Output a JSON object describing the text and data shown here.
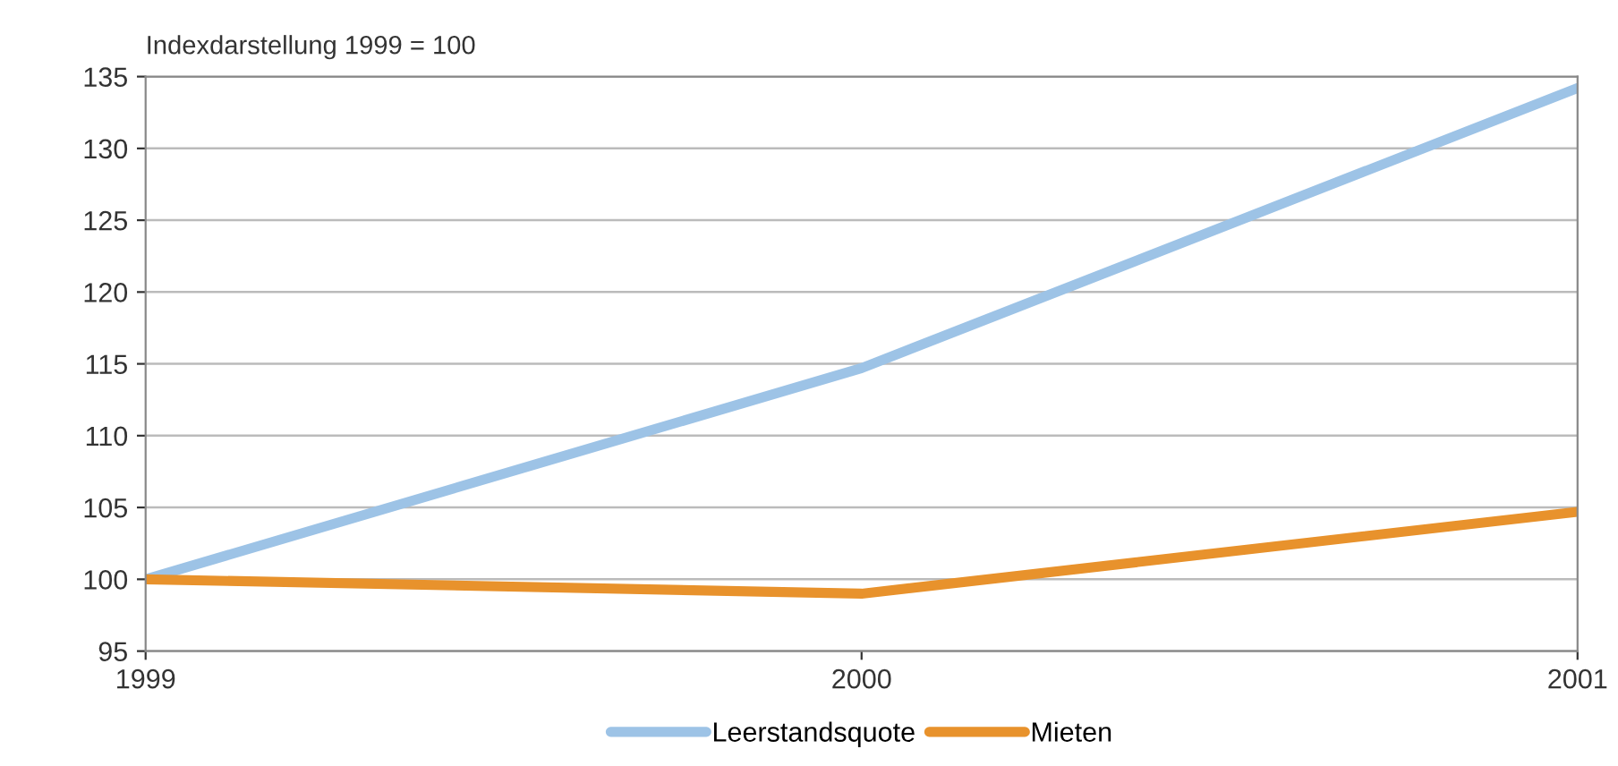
{
  "chart_data": {
    "type": "line",
    "title": "Indexdarstellung 1999 = 100",
    "x": [
      1999,
      2000,
      2001
    ],
    "series": [
      {
        "name": "Leerstandsquote",
        "color": "#9dc3e6",
        "values": [
          100,
          114.7,
          134.2
        ]
      },
      {
        "name": "Mieten",
        "color": "#e8922c",
        "values": [
          100,
          99,
          104.7
        ]
      }
    ],
    "xlim": [
      1999,
      2001
    ],
    "xticks": [
      1999,
      2000,
      2001
    ],
    "ylim": [
      95,
      135
    ],
    "yticks": [
      95,
      100,
      105,
      110,
      115,
      120,
      125,
      130,
      135
    ],
    "grid": "y",
    "legend": "bottom",
    "marker": "none",
    "line_style": "solid"
  }
}
